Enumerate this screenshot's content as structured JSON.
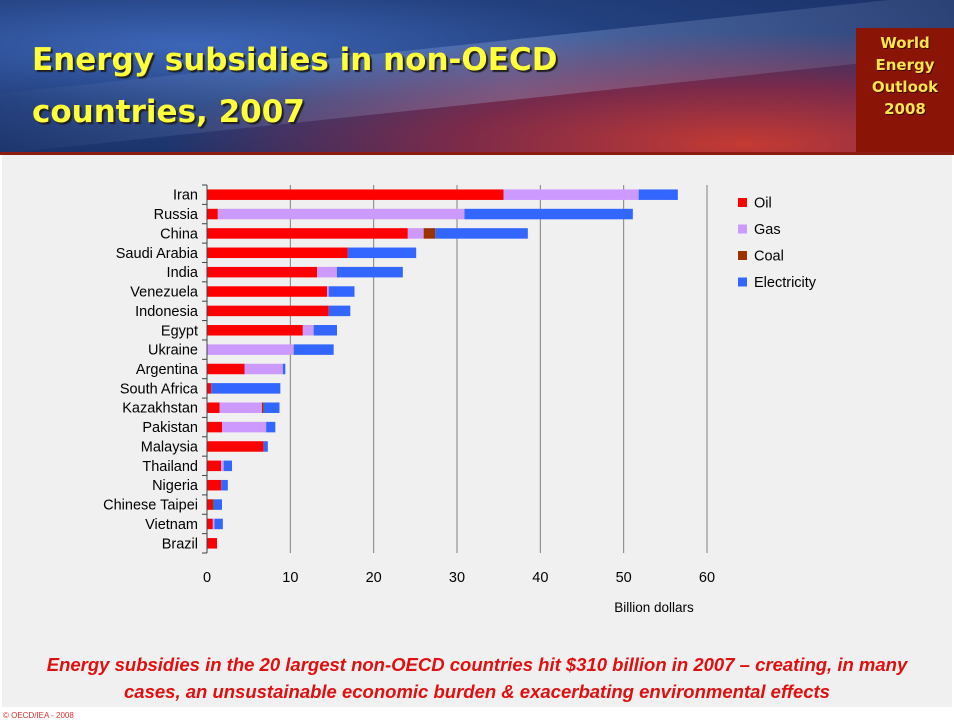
{
  "slide": {
    "title": "Energy subsidies in non-OECD countries, 2007",
    "logo_text": "World\nEnergy\nOutlook\n2008",
    "caption": "Energy subsidies in the 20 largest non-OECD countries hit $310 billion in 2007 – creating, in many cases, an unsustainable economic burden & exacerbating environmental effects",
    "copyright": "© OECD/IEA - 2008"
  },
  "colors": {
    "Oil": "#ff0000",
    "Gas": "#cc99ff",
    "Coal": "#993300",
    "Electricity": "#3366ff",
    "title": "#ffff3c",
    "caption": "#e01010"
  },
  "chart_data": {
    "type": "bar",
    "orientation": "horizontal",
    "stacked": true,
    "title": "",
    "xlabel": "Billion dollars",
    "ylabel": "",
    "xlim": [
      0,
      60
    ],
    "xticks": [
      0,
      10,
      20,
      30,
      40,
      50,
      60
    ],
    "grid": "vertical major gridlines",
    "legend": "right",
    "categories": [
      "Iran",
      "Russia",
      "China",
      "Saudi Arabia",
      "India",
      "Venezuela",
      "Indonesia",
      "Egypt",
      "Ukraine",
      "Argentina",
      "South Africa",
      "Kazakhstan",
      "Pakistan",
      "Malaysia",
      "Thailand",
      "Nigeria",
      "Chinese Taipei",
      "Vietnam",
      "Brazil"
    ],
    "series": [
      {
        "name": "Oil",
        "values": [
          35.6,
          1.3,
          24.1,
          16.9,
          13.2,
          14.4,
          14.6,
          11.5,
          0.0,
          4.5,
          0.5,
          1.5,
          1.8,
          6.8,
          1.7,
          1.7,
          0.6,
          0.7,
          1.2
        ]
      },
      {
        "name": "Gas",
        "values": [
          16.2,
          29.6,
          1.9,
          0.0,
          2.4,
          0.2,
          0.0,
          1.3,
          10.4,
          4.6,
          0.0,
          5.1,
          5.3,
          0.0,
          0.3,
          0.0,
          0.0,
          0.2,
          0.0
        ]
      },
      {
        "name": "Coal",
        "values": [
          0.0,
          0.0,
          1.4,
          0.0,
          0.0,
          0.0,
          0.0,
          0.0,
          0.0,
          0.0,
          0.0,
          0.2,
          0.0,
          0.0,
          0.0,
          0.0,
          0.2,
          0.0,
          0.0
        ]
      },
      {
        "name": "Electricity",
        "values": [
          4.7,
          20.2,
          11.1,
          8.2,
          7.9,
          3.1,
          2.6,
          2.8,
          4.8,
          0.3,
          8.3,
          1.9,
          1.1,
          0.5,
          1.0,
          0.8,
          1.0,
          1.0,
          0.0
        ]
      }
    ]
  }
}
